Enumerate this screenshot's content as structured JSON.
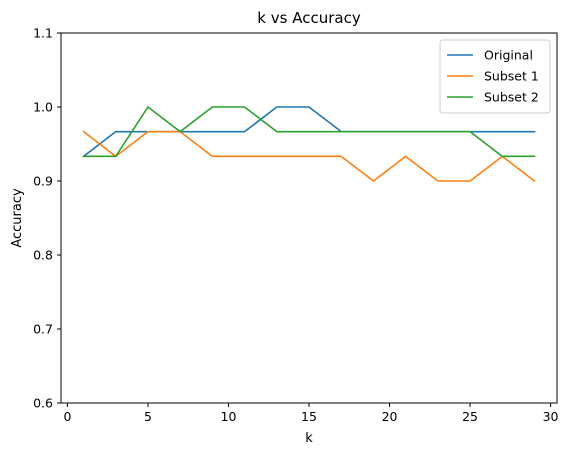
{
  "chart_data": {
    "type": "line",
    "title": "k vs Accuracy",
    "xlabel": "k",
    "ylabel": "Accuracy",
    "xlim": [
      -0.4,
      30.4
    ],
    "ylim": [
      0.6,
      1.1
    ],
    "xticks": [
      0,
      5,
      10,
      15,
      20,
      25,
      30
    ],
    "yticks": [
      0.6,
      0.7,
      0.8,
      0.9,
      1.0,
      1.1
    ],
    "ytick_labels": [
      "0.6",
      "0.7",
      "0.8",
      "0.9",
      "1.0",
      "1.1"
    ],
    "grid": false,
    "legend_position": "top-right",
    "x": [
      1,
      3,
      5,
      7,
      9,
      11,
      13,
      15,
      17,
      19,
      21,
      23,
      25,
      27,
      29
    ],
    "series": [
      {
        "name": "Original",
        "color": "#1f77b4",
        "values": [
          0.9333,
          0.9667,
          0.9667,
          0.9667,
          0.9667,
          0.9667,
          1.0,
          1.0,
          0.9667,
          0.9667,
          0.9667,
          0.9667,
          0.9667,
          0.9667,
          0.9667
        ]
      },
      {
        "name": "Subset 1",
        "color": "#ff7f0e",
        "values": [
          0.9667,
          0.9333,
          0.9667,
          0.9667,
          0.9333,
          0.9333,
          0.9333,
          0.9333,
          0.9333,
          0.9,
          0.9333,
          0.9,
          0.9,
          0.9333,
          0.9
        ]
      },
      {
        "name": "Subset 2",
        "color": "#2ca02c",
        "values": [
          0.9333,
          0.9333,
          1.0,
          0.9667,
          1.0,
          1.0,
          0.9667,
          0.9667,
          0.9667,
          0.9667,
          0.9667,
          0.9667,
          0.9667,
          0.9333,
          0.9333
        ]
      }
    ]
  }
}
